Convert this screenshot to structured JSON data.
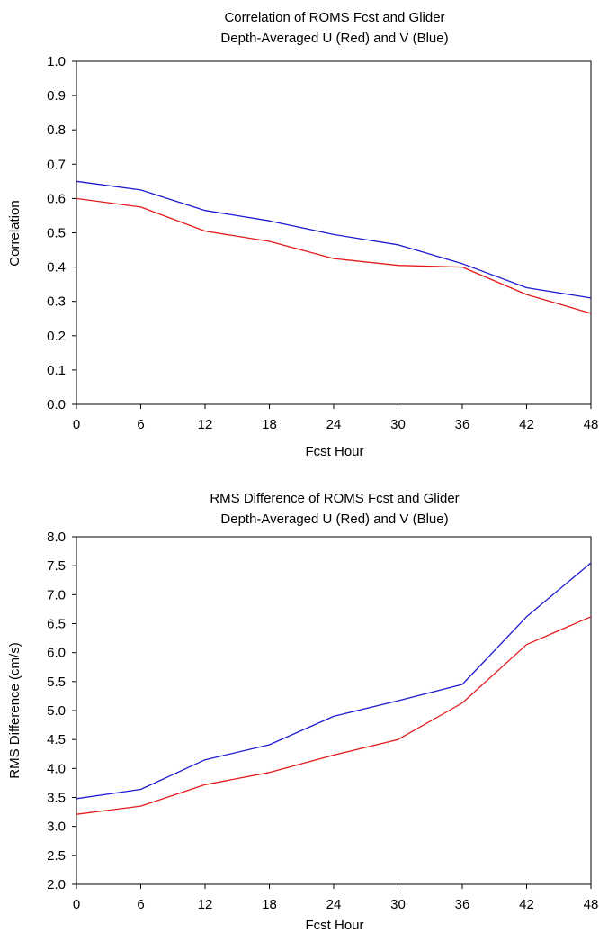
{
  "chart_data": [
    {
      "type": "line",
      "title_lines": [
        "Correlation of ROMS Fcst and Glider",
        "Depth-Averaged U (Red) and V (Blue)"
      ],
      "xlabel": "Fcst Hour",
      "ylabel": "Correlation",
      "x": [
        0,
        6,
        12,
        18,
        24,
        30,
        36,
        42,
        48
      ],
      "xticks": [
        "0",
        "6",
        "12",
        "18",
        "24",
        "30",
        "36",
        "42",
        "48"
      ],
      "yticks": [
        "0.0",
        "0.1",
        "0.2",
        "0.3",
        "0.4",
        "0.5",
        "0.6",
        "0.7",
        "0.8",
        "0.9",
        "1.0"
      ],
      "ylim": [
        0,
        1
      ],
      "xlim": [
        0,
        48
      ],
      "grid": false,
      "legend": "none",
      "series": [
        {
          "color": "#e41a1c",
          "values": [
            0.6,
            0.575,
            0.505,
            0.475,
            0.425,
            0.405,
            0.4,
            0.32,
            0.265
          ]
        },
        {
          "color": "#1c1ccf",
          "values": [
            0.65,
            0.625,
            0.565,
            0.535,
            0.495,
            0.465,
            0.41,
            0.34,
            0.31
          ]
        }
      ]
    },
    {
      "type": "line",
      "title_lines": [
        "RMS Difference of ROMS Fcst and Glider",
        "Depth-Averaged U (Red) and V (Blue)"
      ],
      "xlabel": "Fcst Hour",
      "ylabel": "RMS Difference (cm/s)",
      "x": [
        0,
        6,
        12,
        18,
        24,
        30,
        36,
        42,
        48
      ],
      "xticks": [
        "0",
        "6",
        "12",
        "18",
        "24",
        "30",
        "36",
        "42",
        "48"
      ],
      "yticks": [
        "2.0",
        "2.5",
        "3.0",
        "3.5",
        "4.0",
        "4.5",
        "5.0",
        "5.5",
        "6.0",
        "6.5",
        "7.0",
        "7.5",
        "8.0"
      ],
      "ylim": [
        2,
        8
      ],
      "xlim": [
        0,
        48
      ],
      "grid": false,
      "legend": "none",
      "series": [
        {
          "color": "#e41a1c",
          "values": [
            3.21,
            3.35,
            3.72,
            3.93,
            4.23,
            4.5,
            5.13,
            6.14,
            6.62
          ]
        },
        {
          "color": "#1c1ccf",
          "values": [
            3.48,
            3.64,
            4.15,
            4.41,
            4.9,
            5.17,
            5.45,
            6.62,
            7.55
          ]
        }
      ]
    }
  ]
}
